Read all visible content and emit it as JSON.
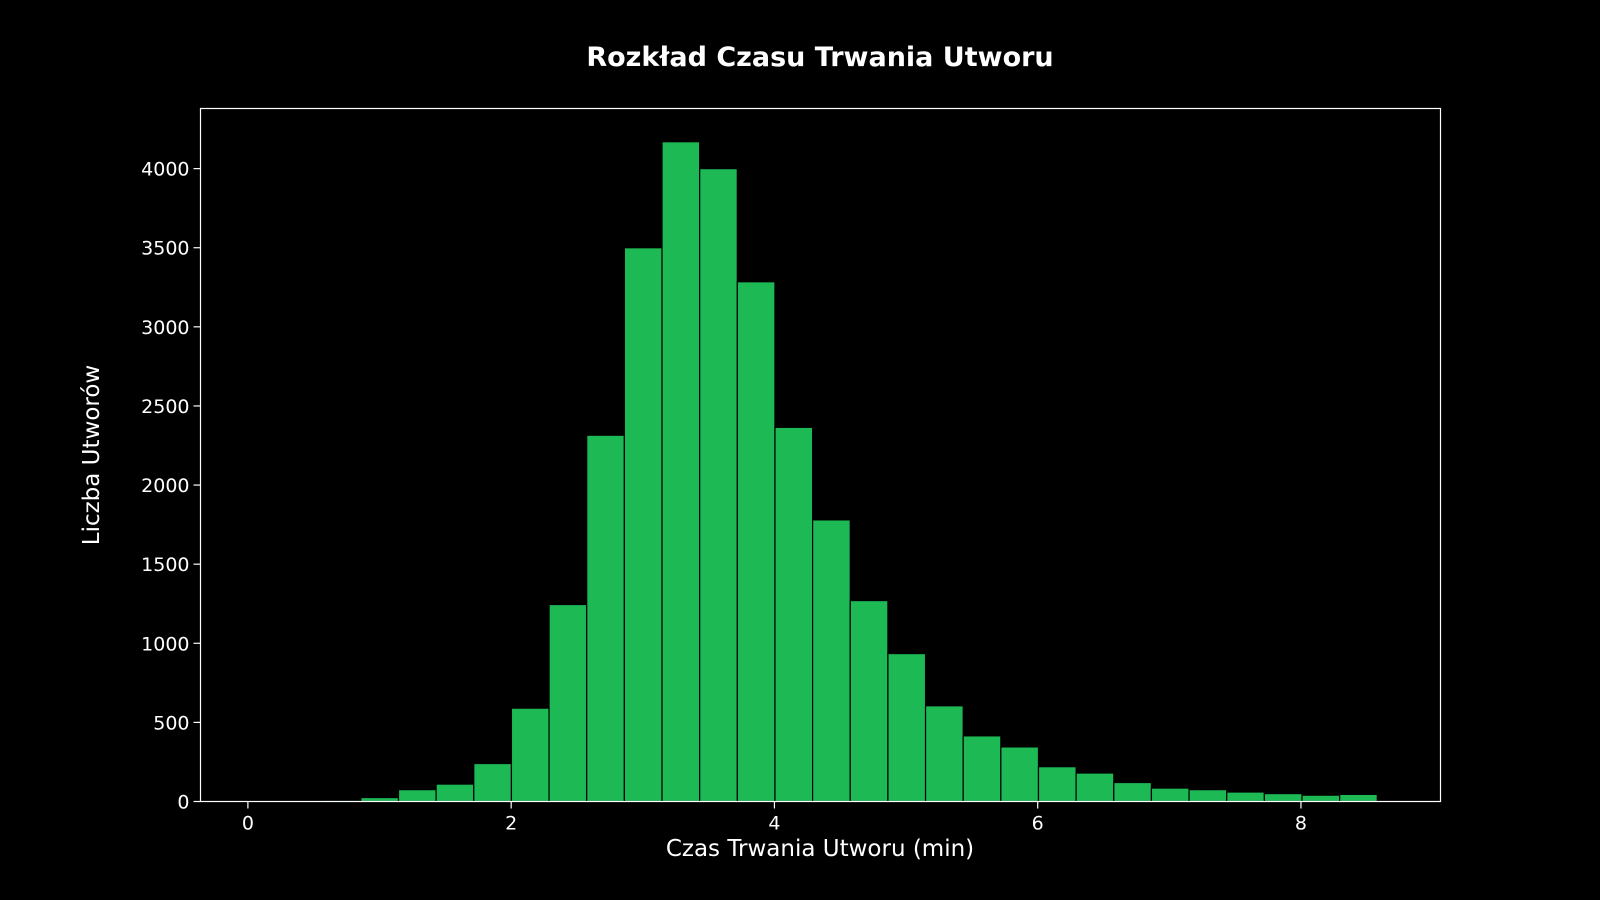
{
  "chart_data": {
    "type": "histogram",
    "title": "Rozkład Czasu Trwania Utworu",
    "xlabel": "Czas Trwania Utworu (min)",
    "ylabel": "Liczba Utworów",
    "xlim": [
      -0.36,
      9.06
    ],
    "ylim": [
      0,
      4380
    ],
    "xticks": [
      0,
      2,
      4,
      6,
      8
    ],
    "yticks": [
      0,
      500,
      1000,
      1500,
      2000,
      2500,
      3000,
      3500,
      4000
    ],
    "bin_edges": [
      0.0,
      0.286,
      0.572,
      0.858,
      1.144,
      1.43,
      1.716,
      2.002,
      2.288,
      2.574,
      2.86,
      3.146,
      3.432,
      3.718,
      4.004,
      4.29,
      4.576,
      4.862,
      5.148,
      5.434,
      5.72,
      6.006,
      6.292,
      6.578,
      6.864,
      7.15,
      7.436,
      7.722,
      8.008,
      8.294,
      8.58
    ],
    "values": [
      2,
      5,
      8,
      25,
      75,
      110,
      240,
      590,
      1245,
      2315,
      3500,
      4170,
      4000,
      3285,
      2365,
      1780,
      1270,
      935,
      605,
      415,
      345,
      220,
      180,
      120,
      85,
      75,
      60,
      50,
      40,
      45
    ],
    "bar_color": "#1db954",
    "edge_color": "#000000",
    "axes_color": "#ffffff",
    "background": "#000000",
    "grid": false,
    "legend": "none"
  }
}
